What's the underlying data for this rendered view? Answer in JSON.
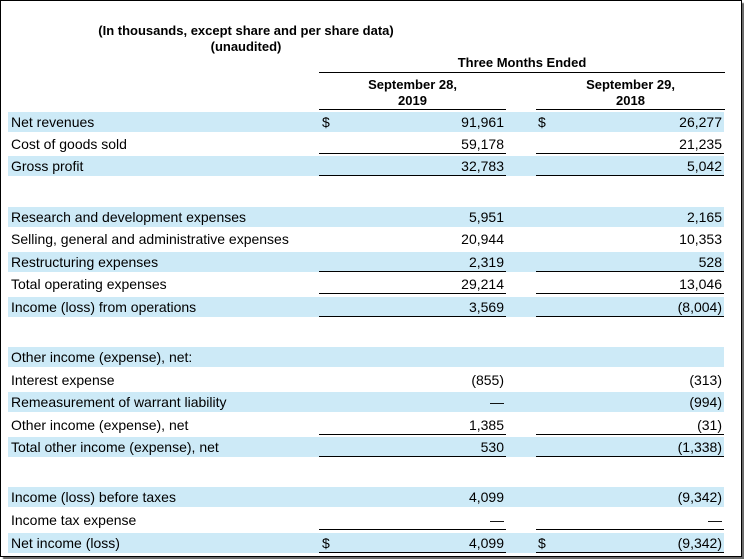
{
  "header": {
    "title_line1": "(In thousands, except share and per share data)",
    "title_line2": "(unaudited)",
    "period": "Three Months Ended",
    "col1_line1": "September 28,",
    "col1_line2": "2019",
    "col2_line1": "September 29,",
    "col2_line2": "2018"
  },
  "rows": [
    {
      "label": "Net revenues",
      "d1": "$",
      "v1": "91,961",
      "d2": "$",
      "v2": "26,277"
    },
    {
      "label": "Cost of goods sold",
      "d1": "",
      "v1": "59,178",
      "d2": "",
      "v2": "21,235"
    },
    {
      "label": "Gross profit",
      "d1": "",
      "v1": "32,783",
      "d2": "",
      "v2": "5,042"
    },
    {
      "label": "Research and development expenses",
      "d1": "",
      "v1": "5,951",
      "d2": "",
      "v2": "2,165"
    },
    {
      "label": "Selling, general and administrative expenses",
      "d1": "",
      "v1": "20,944",
      "d2": "",
      "v2": "10,353"
    },
    {
      "label": "Restructuring expenses",
      "d1": "",
      "v1": "2,319",
      "d2": "",
      "v2": "528"
    },
    {
      "label": "Total operating expenses",
      "d1": "",
      "v1": "29,214",
      "d2": "",
      "v2": "13,046"
    },
    {
      "label": "Income (loss) from operations",
      "d1": "",
      "v1": "3,569",
      "d2": "",
      "v2": "(8,004)"
    },
    {
      "label": "Other income (expense), net:",
      "d1": "",
      "v1": "",
      "d2": "",
      "v2": ""
    },
    {
      "label": "Interest expense",
      "d1": "",
      "v1": "(855)",
      "d2": "",
      "v2": "(313)"
    },
    {
      "label": "Remeasurement of warrant liability",
      "d1": "",
      "v1": "—",
      "d2": "",
      "v2": "(994)"
    },
    {
      "label": "Other income (expense), net",
      "d1": "",
      "v1": "1,385",
      "d2": "",
      "v2": "(31)"
    },
    {
      "label": "Total other income (expense), net",
      "d1": "",
      "v1": "530",
      "d2": "",
      "v2": "(1,338)"
    },
    {
      "label": "Income (loss) before taxes",
      "d1": "",
      "v1": "4,099",
      "d2": "",
      "v2": "(9,342)"
    },
    {
      "label": "Income tax expense",
      "d1": "",
      "v1": "—",
      "d2": "",
      "v2": "—"
    },
    {
      "label": "Net income (loss)",
      "d1": "$",
      "v1": "4,099",
      "d2": "$",
      "v2": "(9,342)"
    }
  ]
}
